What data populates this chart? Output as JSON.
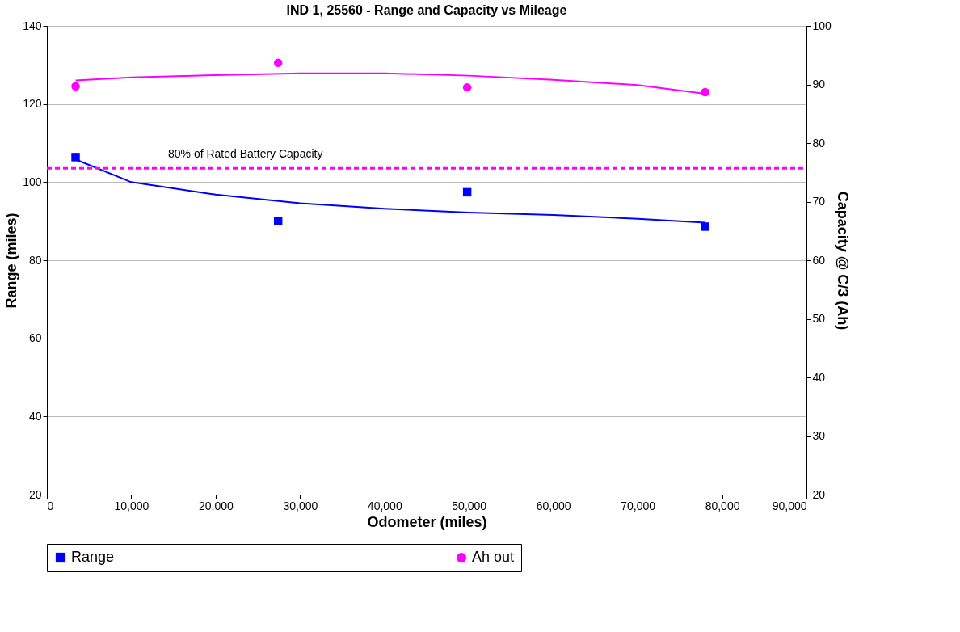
{
  "chart_data": {
    "type": "scatter",
    "title": "IND 1, 25560 - Range and Capacity vs Mileage",
    "xlabel": "Odometer (miles)",
    "ylabel": "Range (miles)",
    "y2label": "Capacity @ C/3 (Ah)",
    "x": [
      3400,
      27400,
      49800,
      78000
    ],
    "series": [
      {
        "name": "Range",
        "color": "#0000ff",
        "marker": "square",
        "values": [
          106.4,
          90.0,
          97.4,
          88.6
        ]
      },
      {
        "name": "Ah out",
        "color": "#ff00ff",
        "marker": "circle",
        "axis": "y2",
        "values": [
          89.7,
          93.7,
          89.5,
          88.7
        ]
      },
      {
        "type": "line",
        "color": "#0000ff",
        "marker": "none",
        "x": [
          3400,
          10000,
          20000,
          30000,
          40000,
          50000,
          60000,
          70000,
          78000
        ],
        "values": [
          105.8,
          100,
          96.8,
          94.6,
          93.2,
          92.2,
          91.6,
          90.6,
          89.6
        ]
      },
      {
        "type": "line",
        "color": "#ff00ff",
        "marker": "none",
        "axis": "y2",
        "x": [
          3400,
          10000,
          20000,
          30000,
          40000,
          50000,
          60000,
          70000,
          78000
        ],
        "values": [
          90.7,
          91.2,
          91.6,
          91.9,
          91.9,
          91.5,
          90.8,
          89.9,
          88.4
        ]
      }
    ],
    "ref_lines": [
      {
        "axis": "y2",
        "value": 75.7,
        "label": "80% of Rated Battery  Capacity",
        "color": "#ff00ff",
        "line_style": "dashed"
      }
    ],
    "xlim": [
      0,
      90000
    ],
    "xticks": [
      {
        "value": 0,
        "label": "0"
      },
      {
        "value": 10000,
        "label": "10,000"
      },
      {
        "value": 20000,
        "label": "20,000"
      },
      {
        "value": 30000,
        "label": "30,000"
      },
      {
        "value": 40000,
        "label": "40,000"
      },
      {
        "value": 50000,
        "label": "50,000"
      },
      {
        "value": 60000,
        "label": "60,000"
      },
      {
        "value": 70000,
        "label": "70,000"
      },
      {
        "value": 80000,
        "label": "80,000"
      },
      {
        "value": 90000,
        "label": "90,000"
      }
    ],
    "ylim": [
      20,
      140
    ],
    "yticks": [
      20,
      40,
      60,
      80,
      100,
      120,
      140
    ],
    "y2lim": [
      20,
      100
    ],
    "y2ticks": [
      20,
      30,
      40,
      50,
      60,
      70,
      80,
      90,
      100
    ],
    "grid": "y",
    "legend": "bottom"
  }
}
